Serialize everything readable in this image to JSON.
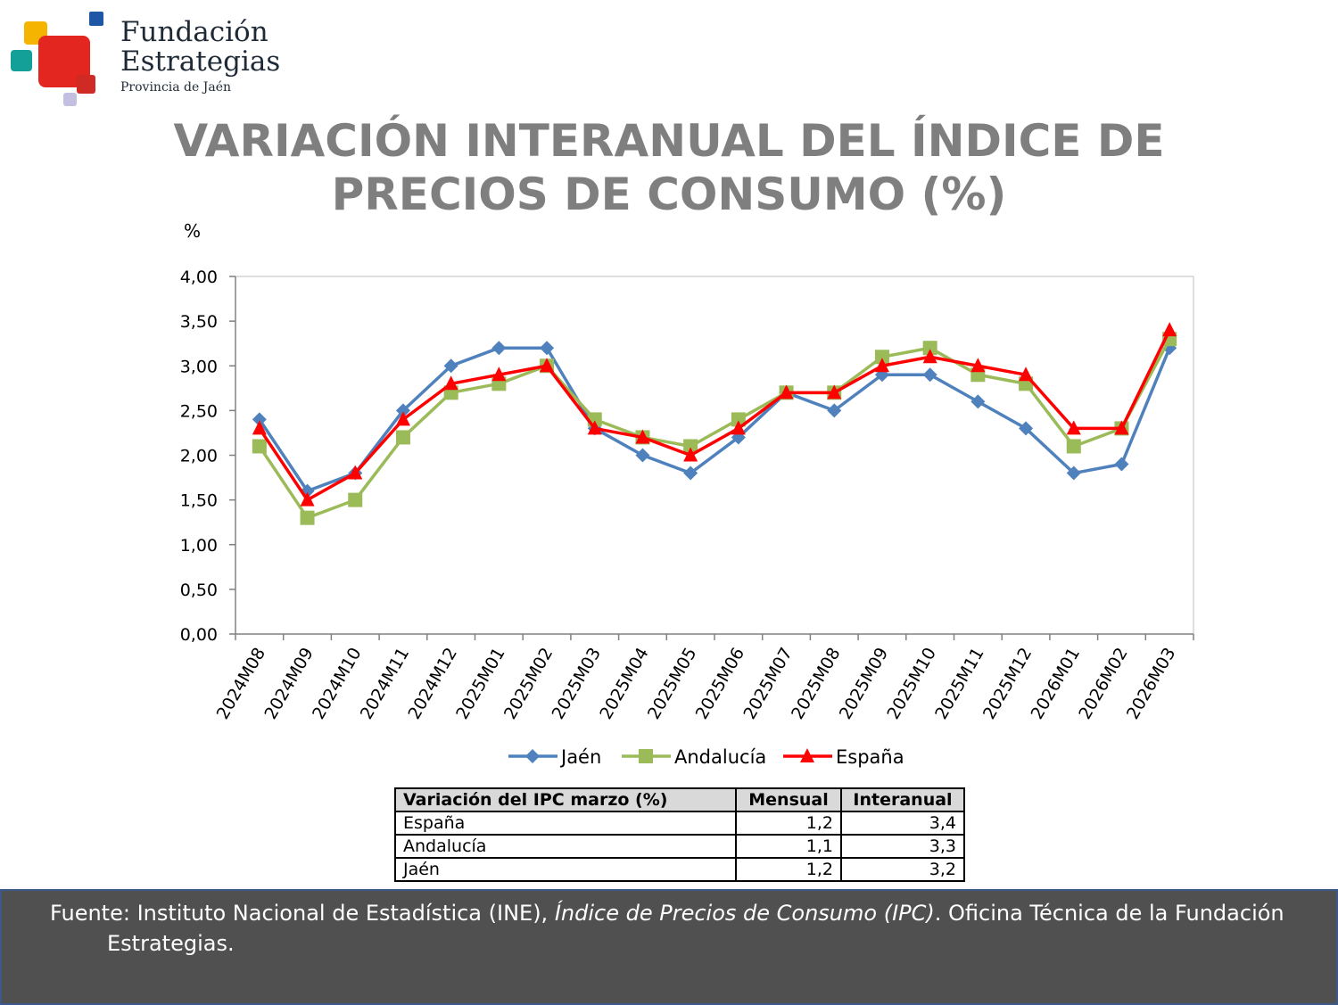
{
  "logo": {
    "line1": "Fundación",
    "line2": "Estrategias",
    "line3": "Provincia de Jaén"
  },
  "title": {
    "line1": "VARIACIÓN INTERANUAL DEL ÍNDICE DE",
    "line2": "PRECIOS DE CONSUMO (%)"
  },
  "chart_data": {
    "type": "line",
    "ylabel": "%",
    "ylim": [
      0,
      4
    ],
    "ytick_step": 0.5,
    "ytick_labels": [
      "0,00",
      "0,50",
      "1,00",
      "1,50",
      "2,00",
      "2,50",
      "3,00",
      "3,50",
      "4,00"
    ],
    "categories": [
      "2024M08",
      "2024M09",
      "2024M10",
      "2024M11",
      "2024M12",
      "2025M01",
      "2025M02",
      "2025M03",
      "2025M04",
      "2025M05",
      "2025M06",
      "2025M07",
      "2025M08",
      "2025M09",
      "2025M10",
      "2025M11",
      "2025M12",
      "2026M01",
      "2026M02",
      "2026M03"
    ],
    "legend_position": "bottom",
    "grid": false,
    "series": [
      {
        "name": "Jaén",
        "color": "#4f81bd",
        "marker": "diamond",
        "values": [
          2.4,
          1.6,
          1.8,
          2.5,
          3.0,
          3.2,
          3.2,
          2.3,
          2.0,
          1.8,
          2.2,
          2.7,
          2.5,
          2.9,
          2.9,
          2.6,
          2.3,
          1.8,
          1.9,
          3.2
        ]
      },
      {
        "name": "Andalucía",
        "color": "#9bbb59",
        "marker": "square",
        "values": [
          2.1,
          1.3,
          1.5,
          2.2,
          2.7,
          2.8,
          3.0,
          2.4,
          2.2,
          2.1,
          2.4,
          2.7,
          2.7,
          3.1,
          3.2,
          2.9,
          2.8,
          2.1,
          2.3,
          3.3
        ]
      },
      {
        "name": "España",
        "color": "#ff0000",
        "marker": "triangle",
        "values": [
          2.3,
          1.5,
          1.8,
          2.4,
          2.8,
          2.9,
          3.0,
          2.3,
          2.2,
          2.0,
          2.3,
          2.7,
          2.7,
          3.0,
          3.1,
          3.0,
          2.9,
          2.3,
          2.3,
          3.4
        ]
      }
    ]
  },
  "table": {
    "headers": [
      "Variación del IPC marzo (%)",
      "Mensual",
      "Interanual"
    ],
    "rows": [
      {
        "label": "España",
        "mensual": "1,2",
        "interanual": "3,4"
      },
      {
        "label": "Andalucía",
        "mensual": "1,1",
        "interanual": "3,3"
      },
      {
        "label": "Jaén",
        "mensual": "1,2",
        "interanual": "3,2"
      }
    ]
  },
  "footer": {
    "prefix": "Fuente: Instituto Nacional de Estadística (INE), ",
    "italic": "Índice de Precios de Consumo (IPC)",
    "suffix": ". Oficina Técnica de la Fundación",
    "continuation": "Estrategias."
  },
  "colors": {
    "title": "#7f7f7f",
    "footer_bg": "#505050",
    "logo_red": "#e3261f",
    "logo_yellow": "#f5b400",
    "logo_teal": "#13a098",
    "logo_blue": "#1d57a5",
    "logo_lilac": "#c3bfe0"
  }
}
